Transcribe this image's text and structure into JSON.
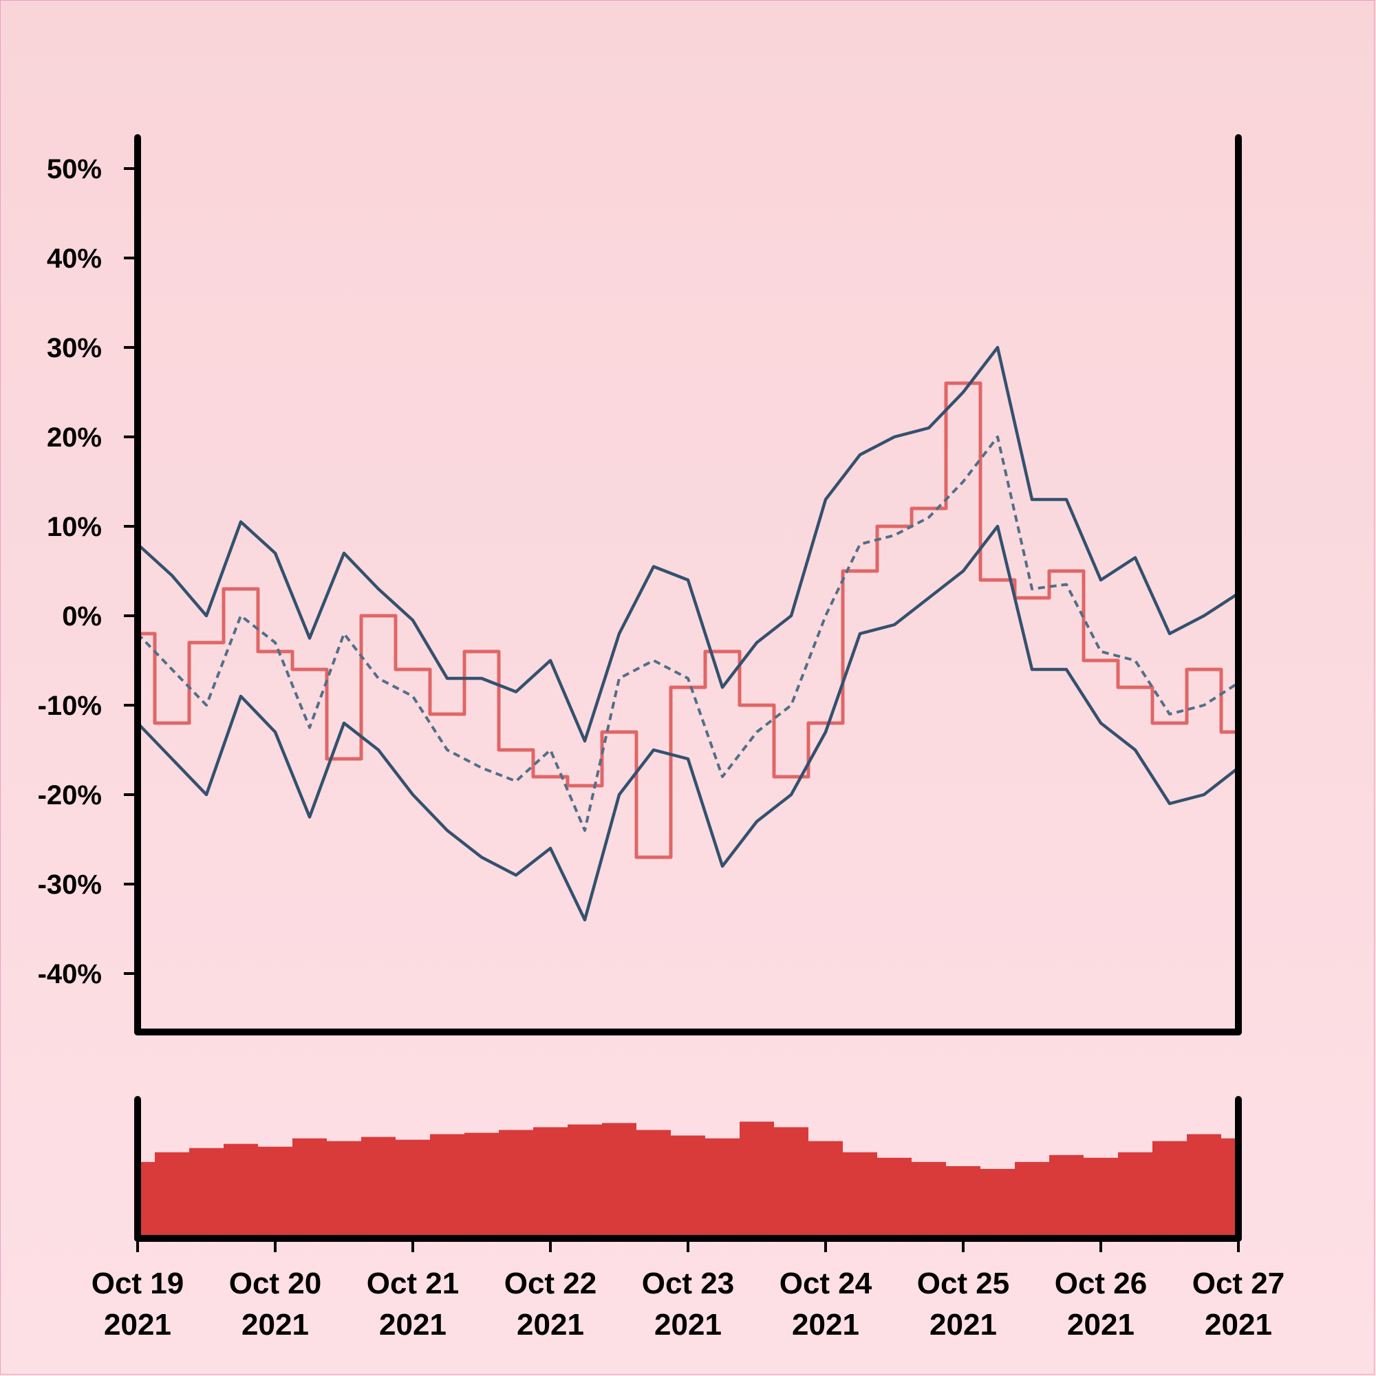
{
  "chart_data": [
    {
      "type": "line",
      "title": "",
      "xlabel": "",
      "ylabel": "",
      "ylim": [
        -0.5,
        0.55
      ],
      "y_ticks": [
        0.5,
        0.4,
        0.3,
        0.2,
        0.1,
        0.0,
        -0.1,
        -0.2,
        -0.3,
        -0.4
      ],
      "y_tick_labels": [
        "50%",
        "40%",
        "30%",
        "20%",
        "10%",
        "0%",
        "-10%",
        "-20%",
        "-30%",
        "-40%"
      ],
      "x_range": [
        "2021-10-19",
        "2021-10-27"
      ],
      "grid": false,
      "colors": {
        "price": "#e06666",
        "band": "#34516e",
        "mid": "#516f88"
      },
      "series": [
        {
          "key": "price",
          "style": "step",
          "x": [
            "2021-10-19 00:00",
            "2021-10-19 06:00",
            "2021-10-19 12:00",
            "2021-10-19 18:00",
            "2021-10-20 00:00",
            "2021-10-20 06:00",
            "2021-10-20 12:00",
            "2021-10-20 18:00",
            "2021-10-21 00:00",
            "2021-10-21 06:00",
            "2021-10-21 12:00",
            "2021-10-21 18:00",
            "2021-10-22 00:00",
            "2021-10-22 06:00",
            "2021-10-22 12:00",
            "2021-10-22 18:00",
            "2021-10-23 00:00",
            "2021-10-23 06:00",
            "2021-10-23 12:00",
            "2021-10-23 18:00",
            "2021-10-24 00:00",
            "2021-10-24 06:00",
            "2021-10-24 12:00",
            "2021-10-24 18:00",
            "2021-10-25 00:00",
            "2021-10-25 06:00",
            "2021-10-25 12:00",
            "2021-10-25 18:00",
            "2021-10-26 00:00",
            "2021-10-26 06:00",
            "2021-10-26 12:00",
            "2021-10-26 18:00",
            "2021-10-27 00:00"
          ],
          "y": [
            -0.02,
            -0.12,
            -0.03,
            0.03,
            -0.04,
            -0.06,
            -0.16,
            0.0,
            -0.06,
            -0.11,
            -0.04,
            -0.15,
            -0.18,
            -0.19,
            -0.13,
            -0.27,
            -0.08,
            -0.04,
            -0.1,
            -0.18,
            -0.12,
            0.05,
            0.1,
            0.12,
            0.26,
            0.04,
            0.02,
            0.05,
            -0.05,
            -0.08,
            -0.12,
            -0.06,
            -0.13
          ]
        },
        {
          "key": "band_upper",
          "style": "line",
          "x": [
            "2021-10-19 00:00",
            "2021-10-19 06:00",
            "2021-10-19 12:00",
            "2021-10-19 18:00",
            "2021-10-20 00:00",
            "2021-10-20 06:00",
            "2021-10-20 12:00",
            "2021-10-20 18:00",
            "2021-10-21 00:00",
            "2021-10-21 06:00",
            "2021-10-21 12:00",
            "2021-10-21 18:00",
            "2021-10-22 00:00",
            "2021-10-22 06:00",
            "2021-10-22 12:00",
            "2021-10-22 18:00",
            "2021-10-23 00:00",
            "2021-10-23 06:00",
            "2021-10-23 12:00",
            "2021-10-23 18:00",
            "2021-10-24 00:00",
            "2021-10-24 06:00",
            "2021-10-24 12:00",
            "2021-10-24 18:00",
            "2021-10-25 00:00",
            "2021-10-25 06:00",
            "2021-10-25 12:00",
            "2021-10-25 18:00",
            "2021-10-26 00:00",
            "2021-10-26 06:00",
            "2021-10-26 12:00",
            "2021-10-26 18:00",
            "2021-10-27 00:00"
          ],
          "y": [
            0.08,
            0.045,
            0.0,
            0.105,
            0.07,
            -0.025,
            0.07,
            0.03,
            -0.005,
            -0.07,
            -0.07,
            -0.085,
            -0.05,
            -0.14,
            -0.02,
            0.055,
            0.04,
            -0.08,
            -0.03,
            0.0,
            0.13,
            0.18,
            0.2,
            0.21,
            0.25,
            0.3,
            0.13,
            0.13,
            0.04,
            0.065,
            -0.02,
            0.0,
            0.025
          ]
        },
        {
          "key": "band_mid",
          "style": "dashed",
          "x": [
            "2021-10-19 00:00",
            "2021-10-19 06:00",
            "2021-10-19 12:00",
            "2021-10-19 18:00",
            "2021-10-20 00:00",
            "2021-10-20 06:00",
            "2021-10-20 12:00",
            "2021-10-20 18:00",
            "2021-10-21 00:00",
            "2021-10-21 06:00",
            "2021-10-21 12:00",
            "2021-10-21 18:00",
            "2021-10-22 00:00",
            "2021-10-22 06:00",
            "2021-10-22 12:00",
            "2021-10-22 18:00",
            "2021-10-23 00:00",
            "2021-10-23 06:00",
            "2021-10-23 12:00",
            "2021-10-23 18:00",
            "2021-10-24 00:00",
            "2021-10-24 06:00",
            "2021-10-24 12:00",
            "2021-10-24 18:00",
            "2021-10-25 00:00",
            "2021-10-25 06:00",
            "2021-10-25 12:00",
            "2021-10-25 18:00",
            "2021-10-26 00:00",
            "2021-10-26 06:00",
            "2021-10-26 12:00",
            "2021-10-26 18:00",
            "2021-10-27 00:00"
          ],
          "y": [
            -0.02,
            -0.06,
            -0.1,
            0.0,
            -0.03,
            -0.125,
            -0.02,
            -0.07,
            -0.09,
            -0.15,
            -0.17,
            -0.185,
            -0.15,
            -0.24,
            -0.07,
            -0.05,
            -0.07,
            -0.18,
            -0.13,
            -0.1,
            0.0,
            0.08,
            0.09,
            0.11,
            0.15,
            0.2,
            0.03,
            0.035,
            -0.04,
            -0.05,
            -0.11,
            -0.1,
            -0.075
          ]
        },
        {
          "key": "band_lower",
          "style": "line",
          "x": [
            "2021-10-19 00:00",
            "2021-10-19 06:00",
            "2021-10-19 12:00",
            "2021-10-19 18:00",
            "2021-10-20 00:00",
            "2021-10-20 06:00",
            "2021-10-20 12:00",
            "2021-10-20 18:00",
            "2021-10-21 00:00",
            "2021-10-21 06:00",
            "2021-10-21 12:00",
            "2021-10-21 18:00",
            "2021-10-22 00:00",
            "2021-10-22 06:00",
            "2021-10-22 12:00",
            "2021-10-22 18:00",
            "2021-10-23 00:00",
            "2021-10-23 06:00",
            "2021-10-23 12:00",
            "2021-10-23 18:00",
            "2021-10-24 00:00",
            "2021-10-24 06:00",
            "2021-10-24 12:00",
            "2021-10-24 18:00",
            "2021-10-25 00:00",
            "2021-10-25 06:00",
            "2021-10-25 12:00",
            "2021-10-25 18:00",
            "2021-10-26 00:00",
            "2021-10-26 06:00",
            "2021-10-26 12:00",
            "2021-10-26 18:00",
            "2021-10-27 00:00"
          ],
          "y": [
            -0.12,
            -0.16,
            -0.2,
            -0.09,
            -0.13,
            -0.225,
            -0.12,
            -0.15,
            -0.2,
            -0.24,
            -0.27,
            -0.29,
            -0.26,
            -0.34,
            -0.2,
            -0.15,
            -0.16,
            -0.28,
            -0.23,
            -0.2,
            -0.13,
            -0.02,
            -0.01,
            0.02,
            0.05,
            0.1,
            -0.06,
            -0.06,
            -0.12,
            -0.15,
            -0.21,
            -0.2,
            -0.17
          ]
        }
      ]
    },
    {
      "type": "bar",
      "title": "",
      "x_ticks": [
        "2021-10-19",
        "2021-10-20",
        "2021-10-21",
        "2021-10-22",
        "2021-10-23",
        "2021-10-24",
        "2021-10-25",
        "2021-10-26",
        "2021-10-27"
      ],
      "x_tick_labels": [
        [
          "Oct 19",
          "2021"
        ],
        [
          "Oct 20",
          "2021"
        ],
        [
          "Oct 21",
          "2021"
        ],
        [
          "Oct 22",
          "2021"
        ],
        [
          "Oct 23",
          "2021"
        ],
        [
          "Oct 24",
          "2021"
        ],
        [
          "Oct 25",
          "2021"
        ],
        [
          "Oct 26",
          "2021"
        ],
        [
          "Oct 27",
          "2021"
        ]
      ],
      "color": "#d93a3a",
      "ylim": [
        0,
        1
      ],
      "x": [
        "2021-10-19 00:00",
        "2021-10-19 06:00",
        "2021-10-19 12:00",
        "2021-10-19 18:00",
        "2021-10-20 00:00",
        "2021-10-20 06:00",
        "2021-10-20 12:00",
        "2021-10-20 18:00",
        "2021-10-21 00:00",
        "2021-10-21 06:00",
        "2021-10-21 12:00",
        "2021-10-21 18:00",
        "2021-10-22 00:00",
        "2021-10-22 06:00",
        "2021-10-22 12:00",
        "2021-10-22 18:00",
        "2021-10-23 00:00",
        "2021-10-23 06:00",
        "2021-10-23 12:00",
        "2021-10-23 18:00",
        "2021-10-24 00:00",
        "2021-10-24 06:00",
        "2021-10-24 12:00",
        "2021-10-24 18:00",
        "2021-10-25 00:00",
        "2021-10-25 06:00",
        "2021-10-25 12:00",
        "2021-10-25 18:00",
        "2021-10-26 00:00",
        "2021-10-26 06:00",
        "2021-10-26 12:00",
        "2021-10-26 18:00",
        "2021-10-27 00:00"
      ],
      "values": [
        0.55,
        0.62,
        0.65,
        0.68,
        0.66,
        0.72,
        0.7,
        0.73,
        0.71,
        0.75,
        0.76,
        0.78,
        0.8,
        0.82,
        0.83,
        0.78,
        0.74,
        0.72,
        0.84,
        0.8,
        0.7,
        0.62,
        0.58,
        0.55,
        0.52,
        0.5,
        0.55,
        0.6,
        0.58,
        0.62,
        0.7,
        0.75,
        0.72
      ]
    }
  ]
}
